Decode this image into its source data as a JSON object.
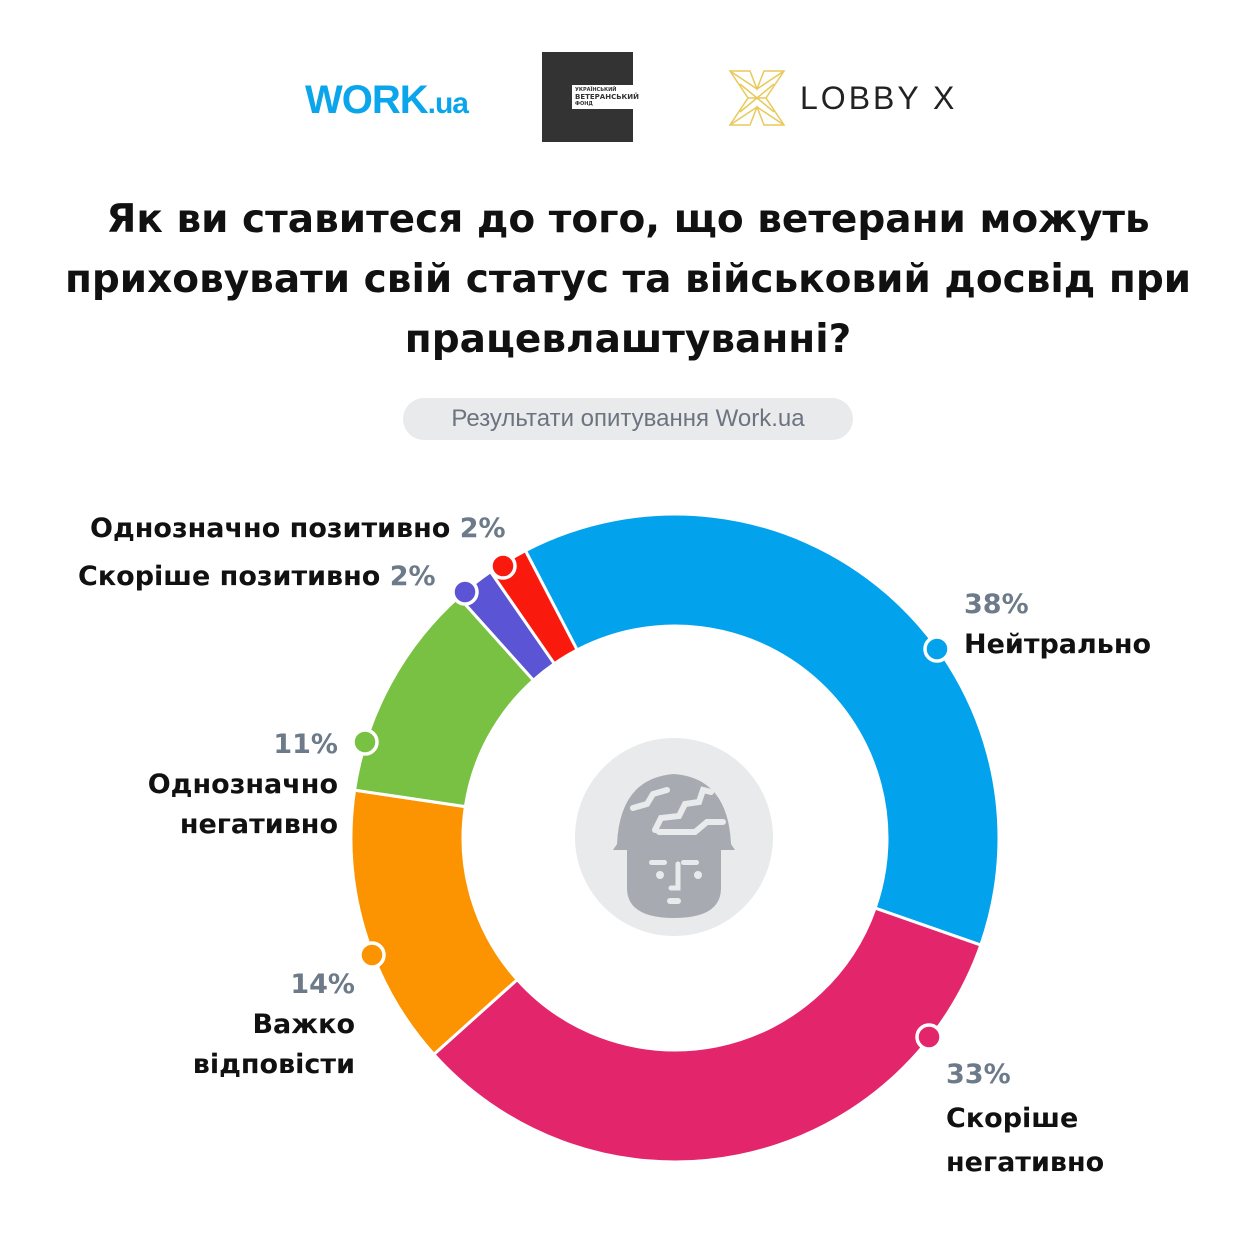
{
  "logos": {
    "work": "WORK",
    "work_suffix": ".ua",
    "uvf": [
      "УКРАЇНСЬКИЙ",
      "ВЕТЕРАНСЬКИЙ",
      "ФОНД"
    ],
    "lobby": "LOBBY X"
  },
  "title": "Як ви ставитеся до того, що ветерани можуть приховувати свій статус та військовий досвід при працевлаштуванні?",
  "subtitle": "Результати опитування Work.ua",
  "chart_data": {
    "type": "pie",
    "donut": true,
    "categories": [
      "Нейтрально",
      "Скоріше негативно",
      "Важко відповісти",
      "Однозначно негативно",
      "Скоріше позитивно",
      "Однозначно позитивно"
    ],
    "values": [
      38,
      33,
      14,
      11,
      2,
      2
    ],
    "labels": [
      "38%",
      "33%",
      "14%",
      "11%",
      "2%",
      "2%"
    ],
    "colors": [
      "#03a2ec",
      "#e3256b",
      "#fb9400",
      "#79c142",
      "#5b55d6",
      "#fa1a0d"
    ],
    "center_icon": "soldier-helmet-icon"
  }
}
